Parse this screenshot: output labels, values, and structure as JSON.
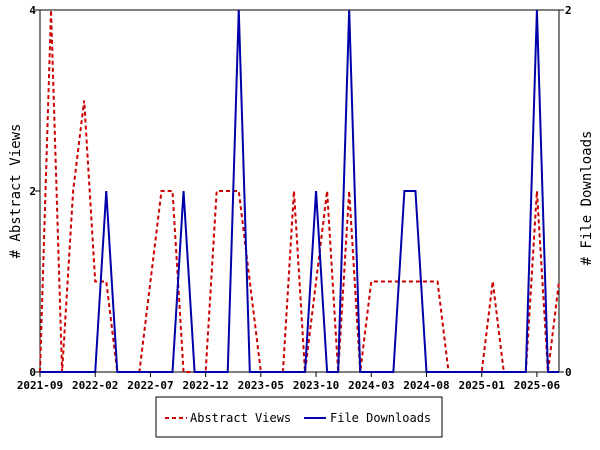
{
  "chart_data": {
    "type": "line",
    "x_dates": [
      "2021-09",
      "2021-10",
      "2021-11",
      "2021-12",
      "2022-01",
      "2022-02",
      "2022-03",
      "2022-04",
      "2022-05",
      "2022-06",
      "2022-07",
      "2022-08",
      "2022-09",
      "2022-10",
      "2022-11",
      "2022-12",
      "2023-01",
      "2023-02",
      "2023-03",
      "2023-04",
      "2023-05",
      "2023-06",
      "2023-07",
      "2023-08",
      "2023-09",
      "2023-10",
      "2023-11",
      "2023-12",
      "2024-01",
      "2024-02",
      "2024-03",
      "2024-04",
      "2024-05",
      "2024-06",
      "2024-07",
      "2024-08",
      "2024-09",
      "2024-10",
      "2024-11",
      "2024-12",
      "2025-01",
      "2025-02",
      "2025-03",
      "2025-04",
      "2025-05",
      "2025-06",
      "2025-07",
      "2025-08"
    ],
    "x_ticks": [
      "2021-09",
      "2022-02",
      "2022-07",
      "2022-12",
      "2023-05",
      "2023-10",
      "2024-03",
      "2024-08",
      "2025-01",
      "2025-06"
    ],
    "y_left": {
      "label": "# Abstract Views",
      "ticks": [
        "0",
        "2",
        "4"
      ],
      "range": [
        0,
        4
      ]
    },
    "y_right": {
      "label": "# File Downloads",
      "ticks": [
        "0",
        "2"
      ],
      "range": [
        0,
        2
      ]
    },
    "series": [
      {
        "name": "Abstract Views",
        "axis": "left",
        "color": "#cc0000",
        "dash": "dashed",
        "values": [
          0,
          4,
          0,
          2,
          3,
          1,
          1,
          0,
          0,
          0,
          1,
          2,
          2,
          0,
          0,
          0,
          2,
          2,
          2,
          1,
          0,
          0,
          0,
          2,
          0,
          1,
          2,
          0,
          2,
          0,
          1,
          1,
          1,
          1,
          1,
          1,
          1,
          0,
          0,
          0,
          0,
          1,
          0,
          0,
          0,
          2,
          0,
          1
        ]
      },
      {
        "name": "File Downloads",
        "axis": "right",
        "color": "#0000aa",
        "dash": "solid",
        "values": [
          0,
          0,
          0,
          0,
          0,
          0,
          1,
          0,
          0,
          0,
          0,
          0,
          0,
          1,
          0,
          0,
          0,
          0,
          2,
          0,
          0,
          0,
          0,
          0,
          0,
          1,
          0,
          0,
          2,
          0,
          0,
          0,
          0,
          1,
          1,
          0,
          0,
          0,
          0,
          0,
          0,
          0,
          0,
          0,
          0,
          2,
          0,
          0
        ]
      }
    ],
    "legend": {
      "placement": "bottom-center",
      "items": [
        "Abstract Views",
        "File Downloads"
      ]
    },
    "grid": false
  }
}
